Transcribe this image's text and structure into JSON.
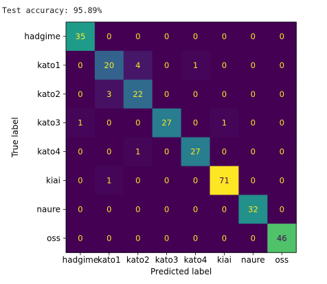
{
  "output": {
    "accuracy_text": "Test accuracy: 95.89%"
  },
  "chart_data": {
    "type": "heatmap",
    "title": "",
    "xlabel": "Predicted label",
    "ylabel": "True label",
    "x_categories": [
      "hadgime",
      "kato1",
      "kato2",
      "kato3",
      "kato4",
      "kiai",
      "naure",
      "oss"
    ],
    "y_categories": [
      "hadgime",
      "kato1",
      "kato2",
      "kato3",
      "kato4",
      "kiai",
      "naure",
      "oss"
    ],
    "colormap": "viridis",
    "value_range": [
      0,
      71
    ],
    "dark_text_color": "#fde725",
    "light_text_color": "#440154",
    "matrix": [
      [
        35,
        0,
        0,
        0,
        0,
        0,
        0,
        0
      ],
      [
        0,
        20,
        4,
        0,
        1,
        0,
        0,
        0
      ],
      [
        0,
        3,
        22,
        0,
        0,
        0,
        0,
        0
      ],
      [
        1,
        0,
        0,
        27,
        0,
        1,
        0,
        0
      ],
      [
        0,
        0,
        1,
        0,
        27,
        0,
        0,
        0
      ],
      [
        0,
        1,
        0,
        0,
        0,
        71,
        0,
        0
      ],
      [
        0,
        0,
        0,
        0,
        0,
        0,
        32,
        0
      ],
      [
        0,
        0,
        0,
        0,
        0,
        0,
        0,
        46
      ]
    ]
  }
}
